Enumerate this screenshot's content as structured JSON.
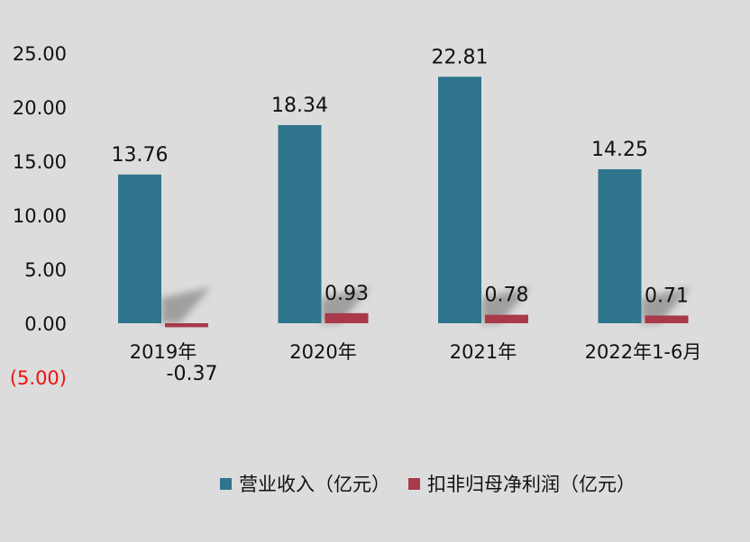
{
  "chart_data": {
    "type": "bar",
    "categories": [
      "2019年",
      "2020年",
      "2021年",
      "2022年1-6月"
    ],
    "series": [
      {
        "name": "营业收入（亿元）",
        "values": [
          13.76,
          18.34,
          22.81,
          14.25
        ],
        "labels": [
          "13.76",
          "18.34",
          "22.81",
          "14.25"
        ],
        "color": "#2e758d"
      },
      {
        "name": "扣非归母净利润（亿元）",
        "values": [
          -0.37,
          0.93,
          0.78,
          0.71
        ],
        "labels": [
          "-0.37",
          "0.93",
          "0.78",
          "0.71"
        ],
        "color": "#a83a4a"
      }
    ],
    "yticks": [
      25,
      20,
      15,
      10,
      5,
      0,
      -5
    ],
    "ytick_labels": [
      "25.00",
      "20.00",
      "15.00",
      "10.00",
      "5.00",
      "0.00",
      "(5.00)"
    ],
    "negative_tick_color": "#ee1111",
    "ylim": [
      -5,
      25
    ],
    "grid": false,
    "legend_position": "bottom",
    "title": "",
    "xlabel": "",
    "ylabel": ""
  }
}
